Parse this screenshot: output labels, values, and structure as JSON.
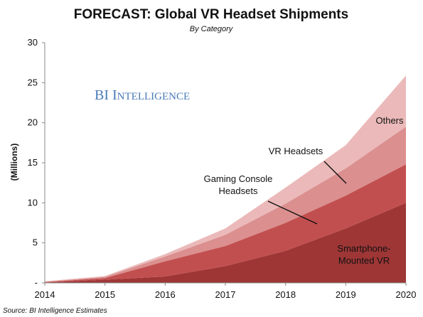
{
  "chart_data": {
    "type": "area",
    "stacked": true,
    "title": "FORECAST: Global VR Headset Shipments",
    "subtitle": "By Category",
    "ylabel": "(Millions)",
    "xlabel": "",
    "x": [
      2014,
      2015,
      2016,
      2017,
      2018,
      2019,
      2020
    ],
    "ylim": [
      0,
      30
    ],
    "yticks": [
      "-",
      "5",
      "10",
      "15",
      "20",
      "25",
      "30"
    ],
    "xticks": [
      "2014",
      "2015",
      "2016",
      "2017",
      "2018",
      "2019",
      "2020"
    ],
    "series": [
      {
        "name": "Smartphone-Mounted VR",
        "color": "#9e3636",
        "values": [
          0.05,
          0.4,
          0.8,
          2.1,
          4.0,
          6.8,
          10.0
        ]
      },
      {
        "name": "Gaming Console Headsets",
        "color": "#c24f4f",
        "values": [
          0.05,
          0.2,
          1.9,
          2.5,
          3.5,
          4.1,
          4.8
        ]
      },
      {
        "name": "VR Headsets",
        "color": "#db8f8f",
        "values": [
          0.05,
          0.15,
          0.6,
          1.4,
          2.4,
          3.4,
          4.7
        ]
      },
      {
        "name": "Others",
        "color": "#ebb9b9",
        "values": [
          0.05,
          0.1,
          0.3,
          0.8,
          2.0,
          2.9,
          6.4
        ]
      }
    ],
    "grid": false,
    "legend": "none",
    "annotations": [
      {
        "text_lines": [
          "Others"
        ]
      },
      {
        "text_lines": [
          "VR Headsets"
        ]
      },
      {
        "text_lines": [
          "Gaming Console",
          "Headsets"
        ]
      },
      {
        "text_lines": [
          "Smartphone-",
          "Mounted VR"
        ]
      }
    ],
    "logo": {
      "first": "BI ",
      "second_cap": "I",
      "second_rest": "NTELLIGENCE"
    },
    "source": "Source: BI Intelligence Estimates"
  }
}
